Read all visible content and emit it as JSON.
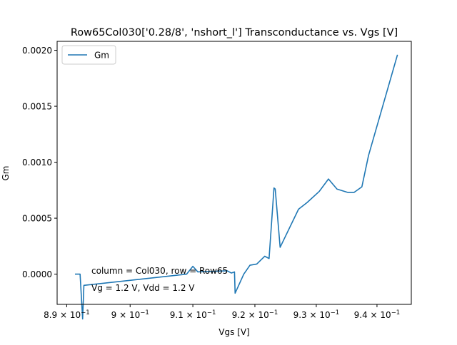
{
  "chart_data": {
    "type": "line",
    "title": "Row65Col030['0.28/8', 'nshort_l'] Transconductance vs. Vgs [V]",
    "xlabel": "Vgs [V]",
    "ylabel": "Gm",
    "xscale": "log",
    "xlim": [
      0.8885,
      0.9457
    ],
    "ylim": [
      -0.00027,
      0.00208
    ],
    "x_ticks": [
      {
        "value": 0.89,
        "base": "8.9",
        "exp": "−1"
      },
      {
        "value": 0.9,
        "base": "9",
        "exp": "−1"
      },
      {
        "value": 0.91,
        "base": "9.1",
        "exp": "−1"
      },
      {
        "value": 0.92,
        "base": "9.2",
        "exp": "−1"
      },
      {
        "value": 0.93,
        "base": "9.3",
        "exp": "−1"
      },
      {
        "value": 0.94,
        "base": "9.4",
        "exp": "−1"
      }
    ],
    "times_sign": "×",
    "y_ticks": [
      {
        "value": 0.0,
        "label": "0.0000"
      },
      {
        "value": 0.0005,
        "label": "0.0005"
      },
      {
        "value": 0.001,
        "label": "0.0010"
      },
      {
        "value": 0.0015,
        "label": "0.0015"
      },
      {
        "value": 0.002,
        "label": "0.0020"
      }
    ],
    "series": [
      {
        "name": "Gm",
        "color": "#1f77b4",
        "x": [
          0.8913,
          0.8921,
          0.8925,
          0.8927,
          0.909,
          0.91,
          0.9108,
          0.9155,
          0.9162,
          0.9167,
          0.9168,
          0.9182,
          0.9192,
          0.9203,
          0.9216,
          0.9223,
          0.9231,
          0.9233,
          0.9241,
          0.9271,
          0.9285,
          0.9305,
          0.932,
          0.9334,
          0.9352,
          0.9362,
          0.9375,
          0.9386,
          0.9434
        ],
        "y": [
          0.0,
          0.0,
          -0.0004,
          -0.0001,
          0.0,
          7e-05,
          2e-05,
          3e-05,
          1e-05,
          2e-05,
          -0.00017,
          0.0,
          8e-05,
          9e-05,
          0.00016,
          0.00014,
          0.00077,
          0.00076,
          0.00024,
          0.00058,
          0.00064,
          0.00074,
          0.00085,
          0.00076,
          0.00073,
          0.00073,
          0.00078,
          0.00106,
          0.00196
        ]
      }
    ],
    "legend": {
      "position": "top-left",
      "entries": [
        "Gm"
      ]
    },
    "annotations": [
      "column = Col030, row = Row65",
      "Vg = 1.2 V, Vdd = 1.2 V"
    ],
    "grid": false
  }
}
